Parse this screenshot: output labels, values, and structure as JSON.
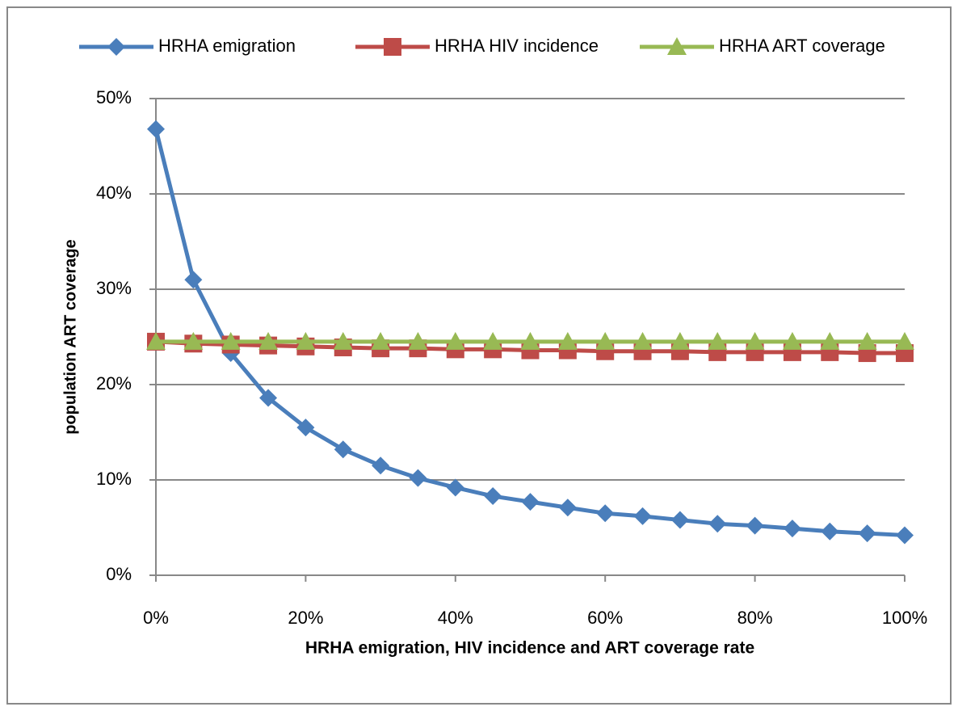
{
  "chart_data": {
    "type": "line",
    "x_label": "HRHA emigration, HIV incidence and ART coverage rate",
    "y_label": "population ART coverage",
    "x": [
      0,
      5,
      10,
      15,
      20,
      25,
      30,
      35,
      40,
      45,
      50,
      55,
      60,
      65,
      70,
      75,
      80,
      85,
      90,
      95,
      100
    ],
    "series": [
      {
        "name": "HRHA emigration",
        "color": "#4a7ebb",
        "marker": "diamond",
        "values": [
          46.8,
          31.0,
          23.3,
          18.6,
          15.5,
          13.2,
          11.5,
          10.2,
          9.2,
          8.3,
          7.7,
          7.1,
          6.5,
          6.2,
          5.8,
          5.4,
          5.2,
          4.9,
          4.6,
          4.4,
          4.2
        ]
      },
      {
        "name": "HRHA HIV incidence",
        "color": "#be4b48",
        "marker": "square",
        "values": [
          24.5,
          24.3,
          24.2,
          24.1,
          24.0,
          23.9,
          23.8,
          23.8,
          23.7,
          23.7,
          23.6,
          23.6,
          23.5,
          23.5,
          23.5,
          23.4,
          23.4,
          23.4,
          23.4,
          23.3,
          23.3
        ]
      },
      {
        "name": "HRHA ART coverage",
        "color": "#98b954",
        "marker": "triangle",
        "values": [
          24.5,
          24.5,
          24.5,
          24.5,
          24.5,
          24.5,
          24.5,
          24.5,
          24.5,
          24.5,
          24.5,
          24.5,
          24.5,
          24.5,
          24.5,
          24.5,
          24.5,
          24.5,
          24.5,
          24.5,
          24.5
        ]
      }
    ],
    "xlim": [
      0,
      100
    ],
    "xticks": [
      {
        "value": 0,
        "label": "0%"
      },
      {
        "value": 20,
        "label": "20%"
      },
      {
        "value": 40,
        "label": "40%"
      },
      {
        "value": 60,
        "label": "60%"
      },
      {
        "value": 80,
        "label": "80%"
      },
      {
        "value": 100,
        "label": "100%"
      }
    ],
    "ylim": [
      0,
      50
    ],
    "yticks": [
      {
        "value": 0,
        "label": "0%"
      },
      {
        "value": 10,
        "label": "10%"
      },
      {
        "value": 20,
        "label": "20%"
      },
      {
        "value": 30,
        "label": "30%"
      },
      {
        "value": 40,
        "label": "40%"
      },
      {
        "value": 50,
        "label": "50%"
      }
    ],
    "grid": true,
    "legend": "top"
  }
}
